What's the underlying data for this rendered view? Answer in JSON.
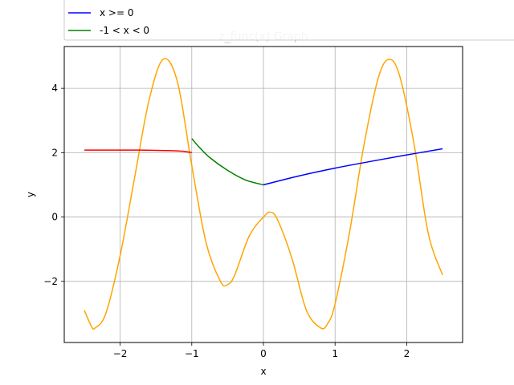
{
  "chart_data": {
    "type": "line",
    "title": "z_func(x) Graph",
    "xlabel": "x",
    "ylabel": "y",
    "xlim": [
      -2.78,
      2.78
    ],
    "ylim": [
      -3.9,
      5.3
    ],
    "xticks": [
      -2,
      -1,
      0,
      1,
      2
    ],
    "yticks": [
      -2,
      0,
      2,
      4
    ],
    "xtick_labels": [
      "−2",
      "−1",
      "0",
      "1",
      "2"
    ],
    "ytick_labels": [
      "−2",
      "0",
      "2",
      "4"
    ],
    "grid": true,
    "legend": {
      "placement": "top-left (above plot)",
      "entries": [
        {
          "label": "x >= 0",
          "color": "#0000ff"
        },
        {
          "label": "-1 < x < 0",
          "color": "#008000"
        }
      ]
    },
    "series": [
      {
        "color": "#ff0000",
        "x": [
          -2.5,
          -2.25,
          -2.0,
          -1.75,
          -1.5,
          -1.25,
          -1.1,
          -1.0
        ],
        "y": [
          2.08,
          2.08,
          2.08,
          2.08,
          2.07,
          2.06,
          2.04,
          2.0
        ]
      },
      {
        "name": "-1 < x < 0",
        "color": "#008000",
        "x": [
          -1.0,
          -0.9,
          -0.75,
          -0.5,
          -0.25,
          0.0
        ],
        "y": [
          2.44,
          2.18,
          1.85,
          1.45,
          1.15,
          1.0
        ]
      },
      {
        "name": "x >= 0",
        "color": "#0000ff",
        "x": [
          0.0,
          0.5,
          1.0,
          1.5,
          2.0,
          2.5
        ],
        "y": [
          1.0,
          1.28,
          1.52,
          1.73,
          1.93,
          2.12
        ]
      },
      {
        "color": "#ffa500",
        "x": [
          -2.5,
          -2.4,
          -2.35,
          -2.2,
          -2.0,
          -1.8,
          -1.6,
          -1.4,
          -1.2,
          -1.0,
          -0.8,
          -0.6,
          -0.5,
          -0.4,
          -0.2,
          0.0,
          0.1,
          0.2,
          0.4,
          0.6,
          0.8,
          0.9,
          1.0,
          1.2,
          1.4,
          1.6,
          1.75,
          1.9,
          2.1,
          2.3,
          2.5
        ],
        "y": [
          -2.9,
          -3.4,
          -3.45,
          -3.0,
          -1.2,
          1.2,
          3.6,
          4.9,
          4.2,
          1.6,
          -0.8,
          -2.0,
          -2.1,
          -1.8,
          -0.6,
          0.0,
          0.15,
          -0.1,
          -1.3,
          -2.9,
          -3.45,
          -3.3,
          -2.7,
          -0.5,
          2.2,
          4.3,
          4.9,
          4.4,
          2.3,
          -0.5,
          -1.8
        ]
      }
    ]
  }
}
